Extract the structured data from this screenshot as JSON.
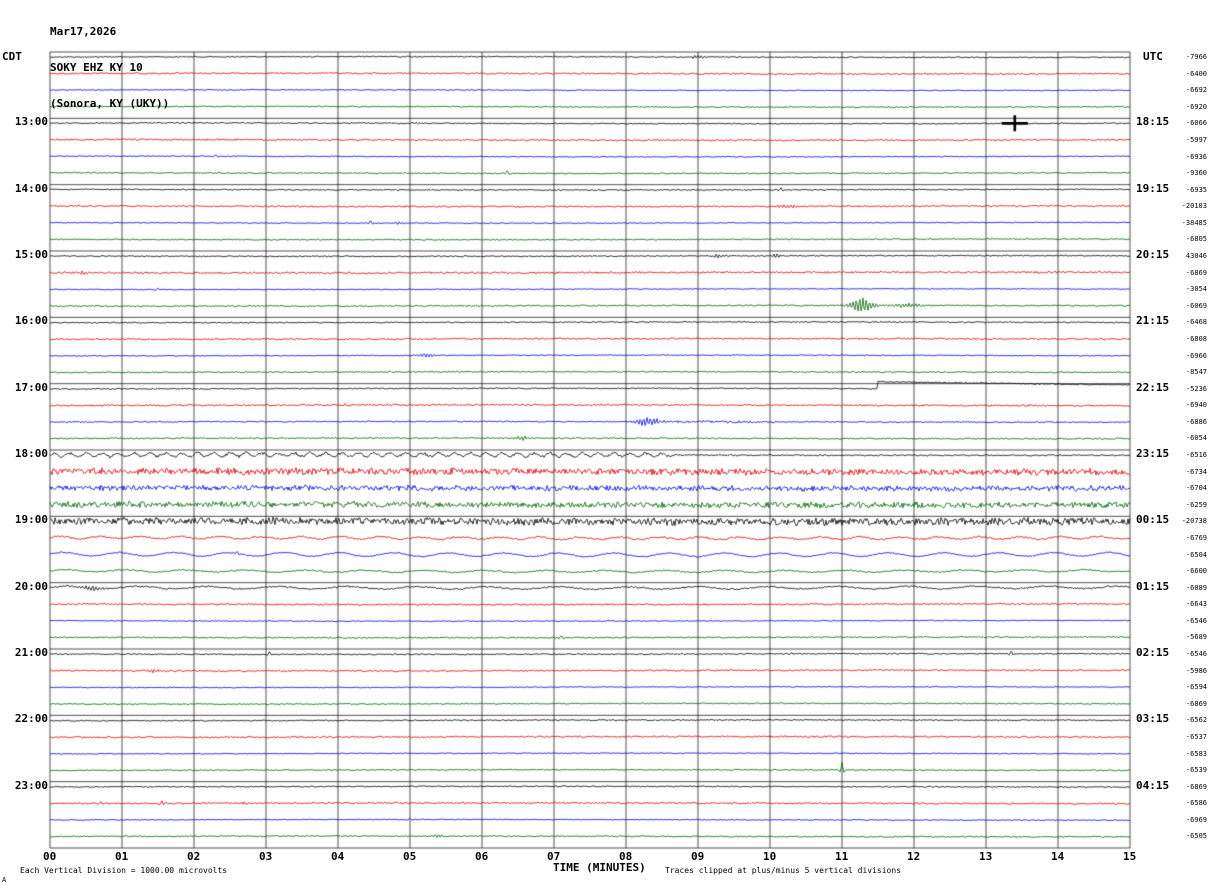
{
  "header": {
    "date": "Mar17,2026",
    "station": "SOKY EHZ KY 10",
    "location": "(Sonora, KY (UKY))"
  },
  "axes": {
    "left_tz": "CDT",
    "right_tz": "UTC",
    "x_title": "TIME (MINUTES)",
    "minute_labels": [
      "00",
      "01",
      "02",
      "03",
      "04",
      "05",
      "06",
      "07",
      "08",
      "09",
      "10",
      "11",
      "12",
      "13",
      "14",
      "15"
    ]
  },
  "footer": {
    "left": "Each Vertical Division = 1000.00 microvolts",
    "right": "Traces clipped at plus/minus 5 vertical divisions",
    "corner": "A"
  },
  "chart_data": {
    "type": "line",
    "title": "SOKY EHZ KY 10 (Sonora, KY (UKY)) helicorder",
    "xlabel": "TIME (MINUTES)",
    "x_range_minutes": [
      0,
      15
    ],
    "traces_per_hour": 4,
    "grid": true,
    "trace_colors_cycle": [
      "#000000",
      "#e00000",
      "#0000dd",
      "#006400"
    ],
    "left_hour_labels": [
      {
        "row": 4,
        "label": "13:00"
      },
      {
        "row": 8,
        "label": "14:00"
      },
      {
        "row": 12,
        "label": "15:00"
      },
      {
        "row": 16,
        "label": "16:00"
      },
      {
        "row": 20,
        "label": "17:00"
      },
      {
        "row": 24,
        "label": "18:00"
      },
      {
        "row": 28,
        "label": "19:00"
      },
      {
        "row": 32,
        "label": "20:00"
      },
      {
        "row": 36,
        "label": "21:00"
      },
      {
        "row": 40,
        "label": "22:00"
      },
      {
        "row": 44,
        "label": "23:00"
      }
    ],
    "right_hour_labels": [
      {
        "row": 4,
        "label": "18:15"
      },
      {
        "row": 8,
        "label": "19:15"
      },
      {
        "row": 12,
        "label": "20:15"
      },
      {
        "row": 16,
        "label": "21:15"
      },
      {
        "row": 20,
        "label": "22:15"
      },
      {
        "row": 24,
        "label": "23:15"
      },
      {
        "row": 28,
        "label": "00:15"
      },
      {
        "row": 32,
        "label": "01:15"
      },
      {
        "row": 36,
        "label": "02:15"
      },
      {
        "row": 40,
        "label": "03:15"
      },
      {
        "row": 44,
        "label": "04:15"
      }
    ],
    "rows": [
      {
        "cdt": "12:00",
        "color": "#000000",
        "amp": 0.6,
        "value": "-7966",
        "events": [
          {
            "type": "burst",
            "t": 8.85,
            "dur": 0.3,
            "amp": 1.6
          }
        ]
      },
      {
        "cdt": "12:15",
        "color": "#e00000",
        "amp": 0.8,
        "value": "-6400",
        "events": []
      },
      {
        "cdt": "12:30",
        "color": "#0000dd",
        "amp": 0.5,
        "value": "-6692",
        "events": []
      },
      {
        "cdt": "12:45",
        "color": "#006400",
        "amp": 0.6,
        "value": "-6920",
        "events": []
      },
      {
        "cdt": "13:00",
        "color": "#000000",
        "amp": 0.6,
        "value": "-6066",
        "events": [
          {
            "type": "cross",
            "t": 13.4,
            "amp": 8
          }
        ]
      },
      {
        "cdt": "13:15",
        "color": "#e00000",
        "amp": 0.8,
        "value": "-5997",
        "events": []
      },
      {
        "cdt": "13:30",
        "color": "#0000dd",
        "amp": 0.5,
        "value": "-6936",
        "events": [
          {
            "type": "spike",
            "t": 2.3,
            "amp": 1.5
          }
        ]
      },
      {
        "cdt": "13:45",
        "color": "#006400",
        "amp": 0.6,
        "value": "-9360",
        "events": [
          {
            "type": "spike",
            "t": 6.35,
            "amp": 2.5
          }
        ]
      },
      {
        "cdt": "14:00",
        "color": "#000000",
        "amp": 0.6,
        "value": "-6935",
        "events": [
          {
            "type": "spike",
            "t": 10.15,
            "amp": 2
          }
        ]
      },
      {
        "cdt": "14:15",
        "color": "#e00000",
        "amp": 0.8,
        "value": "-20103",
        "events": [
          {
            "type": "burst",
            "t": 10.05,
            "dur": 0.4,
            "amp": 1.5
          }
        ]
      },
      {
        "cdt": "14:30",
        "color": "#0000dd",
        "amp": 0.5,
        "value": "-38485",
        "events": [
          {
            "type": "spike",
            "t": 4.45,
            "amp": 2.5
          },
          {
            "type": "burst",
            "t": 4.7,
            "dur": 0.3,
            "amp": 1
          }
        ]
      },
      {
        "cdt": "14:45",
        "color": "#006400",
        "amp": 0.6,
        "value": "-6805",
        "events": []
      },
      {
        "cdt": "15:00",
        "color": "#000000",
        "amp": 0.6,
        "value": "43046",
        "events": [
          {
            "type": "burst",
            "t": 9.15,
            "dur": 0.3,
            "amp": 1.5
          },
          {
            "type": "burst",
            "t": 9.95,
            "dur": 0.3,
            "amp": 1.5
          }
        ]
      },
      {
        "cdt": "15:15",
        "color": "#e00000",
        "amp": 0.9,
        "value": "-6869",
        "events": [
          {
            "type": "burst",
            "t": 0.3,
            "dur": 0.3,
            "amp": 1.2
          }
        ]
      },
      {
        "cdt": "15:30",
        "color": "#0000dd",
        "amp": 0.5,
        "value": "-3054",
        "events": [
          {
            "type": "spike",
            "t": 1.5,
            "amp": 1.5
          }
        ]
      },
      {
        "cdt": "15:45",
        "color": "#006400",
        "amp": 0.7,
        "value": "-6069",
        "events": [
          {
            "type": "burst",
            "t": 11.05,
            "dur": 0.45,
            "amp": 7
          },
          {
            "type": "burst",
            "t": 11.6,
            "dur": 0.6,
            "amp": 2
          }
        ]
      },
      {
        "cdt": "16:00",
        "color": "#000000",
        "amp": 0.6,
        "value": "-6468",
        "events": []
      },
      {
        "cdt": "16:15",
        "color": "#e00000",
        "amp": 0.8,
        "value": "-6808",
        "events": []
      },
      {
        "cdt": "16:30",
        "color": "#0000dd",
        "amp": 0.5,
        "value": "-6966",
        "events": [
          {
            "type": "burst",
            "t": 5.0,
            "dur": 0.4,
            "amp": 1.6
          }
        ]
      },
      {
        "cdt": "16:45",
        "color": "#006400",
        "amp": 0.6,
        "value": "-8547",
        "events": []
      },
      {
        "cdt": "17:00",
        "color": "#000000",
        "amp": 0.6,
        "value": "-5236",
        "events": [
          {
            "type": "step",
            "t": 11.5,
            "amp": 7
          }
        ]
      },
      {
        "cdt": "17:15",
        "color": "#e00000",
        "amp": 0.8,
        "value": "-6940",
        "events": [
          {
            "type": "spike",
            "t": 4.1,
            "amp": 1.5
          }
        ]
      },
      {
        "cdt": "17:30",
        "color": "#0000dd",
        "amp": 0.6,
        "value": "-6886",
        "events": [
          {
            "type": "burst",
            "t": 8.05,
            "dur": 0.5,
            "amp": 4
          },
          {
            "type": "noise",
            "t": 8.3,
            "dur": 1.8,
            "amp": 1
          }
        ]
      },
      {
        "cdt": "17:45",
        "color": "#006400",
        "amp": 0.7,
        "value": "-6054",
        "events": [
          {
            "type": "burst",
            "t": 6.4,
            "dur": 0.3,
            "amp": 2
          }
        ]
      },
      {
        "cdt": "18:00",
        "color": "#000000",
        "amp": 0.7,
        "value": "-6516",
        "events": [
          {
            "type": "wave",
            "t": 0,
            "dur": 8.7,
            "amp": 1.8,
            "period": 16
          },
          {
            "type": "noise",
            "t": 0,
            "dur": 8.7,
            "amp": 0.8
          }
        ]
      },
      {
        "cdt": "18:15",
        "color": "#e00000",
        "amp": 1,
        "value": "-6734",
        "events": [
          {
            "type": "noise",
            "t": 0,
            "dur": 15,
            "amp": 2.8
          }
        ]
      },
      {
        "cdt": "18:30",
        "color": "#0000dd",
        "amp": 1,
        "value": "-6704",
        "events": [
          {
            "type": "noise",
            "t": 0,
            "dur": 15,
            "amp": 2.2
          }
        ]
      },
      {
        "cdt": "18:45",
        "color": "#006400",
        "amp": 1,
        "value": "-6259",
        "events": [
          {
            "type": "noise",
            "t": 0,
            "dur": 15,
            "amp": 2.5
          }
        ]
      },
      {
        "cdt": "19:00",
        "color": "#000000",
        "amp": 1,
        "value": "-20738",
        "events": [
          {
            "type": "noise",
            "t": 0,
            "dur": 15,
            "amp": 3.2
          }
        ]
      },
      {
        "cdt": "19:15",
        "color": "#e00000",
        "amp": 0.9,
        "value": "-6769",
        "events": [
          {
            "type": "wave",
            "t": 0,
            "dur": 15,
            "amp": 1.2,
            "period": 40
          }
        ]
      },
      {
        "cdt": "19:30",
        "color": "#0000dd",
        "amp": 0.6,
        "value": "-6504",
        "events": [
          {
            "type": "wave",
            "t": 0,
            "dur": 15,
            "amp": 1.8,
            "period": 55
          },
          {
            "type": "spike",
            "t": 2.6,
            "amp": 2
          }
        ]
      },
      {
        "cdt": "19:45",
        "color": "#006400",
        "amp": 0.7,
        "value": "-6600",
        "events": [
          {
            "type": "wave",
            "t": 0,
            "dur": 15,
            "amp": 1,
            "period": 60
          }
        ]
      },
      {
        "cdt": "20:00",
        "color": "#000000",
        "amp": 0.8,
        "value": "-6089",
        "events": [
          {
            "type": "wave",
            "t": 0,
            "dur": 15,
            "amp": 1.2,
            "period": 70
          },
          {
            "type": "burst",
            "t": 0.35,
            "dur": 0.5,
            "amp": 2
          }
        ]
      },
      {
        "cdt": "20:15",
        "color": "#e00000",
        "amp": 0.8,
        "value": "-6643",
        "events": []
      },
      {
        "cdt": "20:30",
        "color": "#0000dd",
        "amp": 0.5,
        "value": "-6546",
        "events": []
      },
      {
        "cdt": "20:45",
        "color": "#006400",
        "amp": 0.7,
        "value": "-5689",
        "events": [
          {
            "type": "spike",
            "t": 7.1,
            "amp": 2
          }
        ]
      },
      {
        "cdt": "21:00",
        "color": "#000000",
        "amp": 0.6,
        "value": "-6546",
        "events": [
          {
            "type": "spike",
            "t": 3.05,
            "amp": 3
          },
          {
            "type": "spike",
            "t": 10.3,
            "amp": 1.5
          },
          {
            "type": "spike",
            "t": 13.35,
            "amp": 2.5
          }
        ]
      },
      {
        "cdt": "21:15",
        "color": "#e00000",
        "amp": 0.8,
        "value": "-5986",
        "events": [
          {
            "type": "burst",
            "t": 1.3,
            "dur": 0.3,
            "amp": 1.5
          }
        ]
      },
      {
        "cdt": "21:30",
        "color": "#0000dd",
        "amp": 0.5,
        "value": "-6594",
        "events": []
      },
      {
        "cdt": "21:45",
        "color": "#006400",
        "amp": 0.6,
        "value": "-6869",
        "events": []
      },
      {
        "cdt": "22:00",
        "color": "#000000",
        "amp": 0.6,
        "value": "-6562",
        "events": []
      },
      {
        "cdt": "22:15",
        "color": "#e00000",
        "amp": 0.8,
        "value": "-6537",
        "events": []
      },
      {
        "cdt": "22:30",
        "color": "#0000dd",
        "amp": 0.5,
        "value": "-6583",
        "events": []
      },
      {
        "cdt": "22:45",
        "color": "#006400",
        "amp": 0.6,
        "value": "-6539",
        "events": [
          {
            "type": "spike",
            "t": 11.0,
            "amp": 7
          }
        ]
      },
      {
        "cdt": "23:00",
        "color": "#000000",
        "amp": 0.6,
        "value": "-6869",
        "events": []
      },
      {
        "cdt": "23:15",
        "color": "#e00000",
        "amp": 0.8,
        "value": "-6586",
        "events": [
          {
            "type": "spike",
            "t": 0.7,
            "amp": 2
          },
          {
            "type": "spike",
            "t": 1.55,
            "amp": 2.5
          },
          {
            "type": "burst",
            "t": 2.6,
            "dur": 0.2,
            "amp": 1.5
          }
        ]
      },
      {
        "cdt": "23:30",
        "color": "#0000dd",
        "amp": 0.5,
        "value": "-6969",
        "events": [
          {
            "type": "spike",
            "t": 5.0,
            "amp": 1.5
          }
        ]
      },
      {
        "cdt": "23:45",
        "color": "#006400",
        "amp": 0.6,
        "value": "-6505",
        "events": [
          {
            "type": "burst",
            "t": 5.2,
            "dur": 0.3,
            "amp": 1
          }
        ]
      }
    ]
  }
}
